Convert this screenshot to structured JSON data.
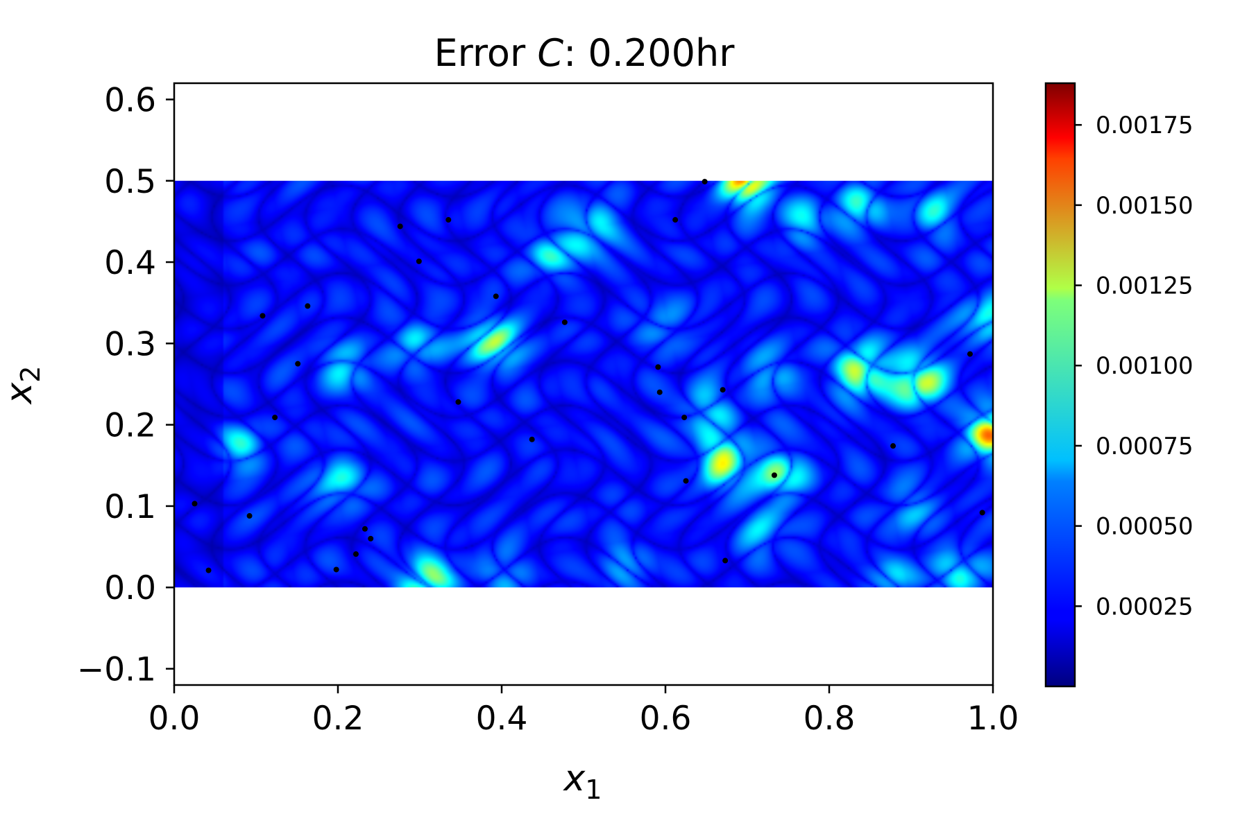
{
  "chart_data": {
    "type": "heatmap",
    "title_text": "Error ",
    "title_symbol": "C",
    "title_suffix": ": 0.200hr",
    "xlabel_base": "x",
    "xlabel_sub": "1",
    "ylabel_base": "x",
    "ylabel_sub": "2",
    "xlim": [
      0.0,
      1.0
    ],
    "ylim": [
      -0.12,
      0.62
    ],
    "data_extent": {
      "x": [
        0.0,
        1.0
      ],
      "y": [
        0.0,
        0.5
      ]
    },
    "xticks": [
      {
        "value": 0.0,
        "label": "0.0"
      },
      {
        "value": 0.2,
        "label": "0.2"
      },
      {
        "value": 0.4,
        "label": "0.4"
      },
      {
        "value": 0.6,
        "label": "0.6"
      },
      {
        "value": 0.8,
        "label": "0.8"
      },
      {
        "value": 1.0,
        "label": "1.0"
      }
    ],
    "yticks": [
      {
        "value": -0.1,
        "label": "−0.1"
      },
      {
        "value": 0.0,
        "label": "0.0"
      },
      {
        "value": 0.1,
        "label": "0.1"
      },
      {
        "value": 0.2,
        "label": "0.2"
      },
      {
        "value": 0.3,
        "label": "0.3"
      },
      {
        "value": 0.4,
        "label": "0.4"
      },
      {
        "value": 0.5,
        "label": "0.5"
      },
      {
        "value": 0.6,
        "label": "0.6"
      }
    ],
    "colorbar": {
      "colormap": "jet",
      "range": [
        0.0,
        0.00188
      ],
      "ticks": [
        {
          "value": 0.00025,
          "label": "0.00025"
        },
        {
          "value": 0.0005,
          "label": "0.00050"
        },
        {
          "value": 0.00075,
          "label": "0.00075"
        },
        {
          "value": 0.001,
          "label": "0.00100"
        },
        {
          "value": 0.00125,
          "label": "0.00125"
        },
        {
          "value": 0.0015,
          "label": "0.00150"
        },
        {
          "value": 0.00175,
          "label": "0.00175"
        }
      ]
    },
    "hotspots": [
      {
        "x": 0.7,
        "y": 0.5,
        "value": 0.0016
      },
      {
        "x": 0.31,
        "y": 0.005,
        "value": 0.0012
      },
      {
        "x": 0.39,
        "y": 0.3,
        "value": 0.00112
      },
      {
        "x": 0.84,
        "y": 0.265,
        "value": 0.00125
      },
      {
        "x": 0.91,
        "y": 0.255,
        "value": 0.0013
      },
      {
        "x": 0.67,
        "y": 0.155,
        "value": 0.0012
      },
      {
        "x": 0.74,
        "y": 0.14,
        "value": 0.001
      },
      {
        "x": 1.0,
        "y": 0.19,
        "value": 0.0015
      },
      {
        "x": 0.2,
        "y": 0.13,
        "value": 0.0008
      },
      {
        "x": 0.08,
        "y": 0.17,
        "value": 0.00075
      },
      {
        "x": 0.51,
        "y": 0.44,
        "value": 0.00085
      },
      {
        "x": 0.84,
        "y": 0.47,
        "value": 0.0008
      },
      {
        "x": 0.21,
        "y": 0.27,
        "value": 0.00075
      },
      {
        "x": 0.3,
        "y": 0.3,
        "value": 0.0007
      },
      {
        "x": 0.46,
        "y": 0.41,
        "value": 0.00075
      },
      {
        "x": 0.77,
        "y": 0.45,
        "value": 0.0007
      },
      {
        "x": 0.99,
        "y": 0.33,
        "value": 0.00085
      },
      {
        "x": 0.55,
        "y": 0.03,
        "value": 0.0006
      },
      {
        "x": 0.88,
        "y": 0.01,
        "value": 0.0007
      },
      {
        "x": 0.96,
        "y": 0.02,
        "value": 0.0008
      },
      {
        "x": 0.6,
        "y": 0.32,
        "value": 0.0006
      },
      {
        "x": 0.72,
        "y": 0.07,
        "value": 0.0007
      },
      {
        "x": 0.65,
        "y": 0.22,
        "value": 0.00075
      },
      {
        "x": 0.73,
        "y": 0.26,
        "value": 0.0007
      },
      {
        "x": 0.93,
        "y": 0.46,
        "value": 0.00075
      },
      {
        "x": 0.4,
        "y": 0.02,
        "value": 0.0006
      },
      {
        "x": 0.9,
        "y": 0.1,
        "value": 0.00065
      }
    ],
    "points": [
      {
        "x": 0.025,
        "y": 0.103
      },
      {
        "x": 0.042,
        "y": 0.021
      },
      {
        "x": 0.092,
        "y": 0.088
      },
      {
        "x": 0.108,
        "y": 0.334
      },
      {
        "x": 0.123,
        "y": 0.209
      },
      {
        "x": 0.151,
        "y": 0.275
      },
      {
        "x": 0.163,
        "y": 0.346
      },
      {
        "x": 0.198,
        "y": 0.022
      },
      {
        "x": 0.222,
        "y": 0.041
      },
      {
        "x": 0.233,
        "y": 0.072
      },
      {
        "x": 0.24,
        "y": 0.06
      },
      {
        "x": 0.276,
        "y": 0.444
      },
      {
        "x": 0.299,
        "y": 0.401
      },
      {
        "x": 0.335,
        "y": 0.452
      },
      {
        "x": 0.347,
        "y": 0.228
      },
      {
        "x": 0.393,
        "y": 0.358
      },
      {
        "x": 0.437,
        "y": 0.182
      },
      {
        "x": 0.477,
        "y": 0.326
      },
      {
        "x": 0.591,
        "y": 0.271
      },
      {
        "x": 0.593,
        "y": 0.24
      },
      {
        "x": 0.612,
        "y": 0.452
      },
      {
        "x": 0.623,
        "y": 0.209
      },
      {
        "x": 0.625,
        "y": 0.131
      },
      {
        "x": 0.648,
        "y": 0.499
      },
      {
        "x": 0.67,
        "y": 0.243
      },
      {
        "x": 0.673,
        "y": 0.033
      },
      {
        "x": 0.733,
        "y": 0.138
      },
      {
        "x": 0.878,
        "y": 0.174
      },
      {
        "x": 0.972,
        "y": 0.287
      },
      {
        "x": 0.987,
        "y": 0.092
      }
    ]
  }
}
